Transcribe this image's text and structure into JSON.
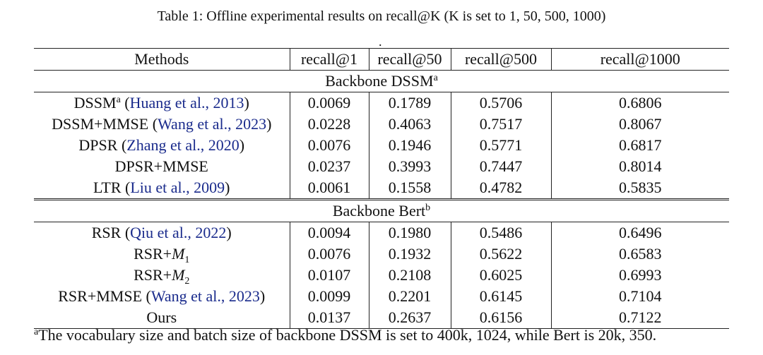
{
  "caption": "Table 1: Offline experimental results on recall@K (K is set to 1, 50, 500, 1000)",
  "caption_dot": ".",
  "headers": [
    "Methods",
    "recall@1",
    "recall@50",
    "recall@500",
    "recall@1000"
  ],
  "sections": [
    {
      "title": "Backbone DSSM",
      "title_sup": "a",
      "rows": [
        {
          "name": "DSSM",
          "name_sup": "a",
          "ref_pre": " (",
          "ref": "Huang et al., 2013",
          "ref_post": ")",
          "values": [
            "0.0069",
            "0.1789",
            "0.5706",
            "0.6806"
          ]
        },
        {
          "name": "DSSM+MMSE",
          "ref_pre": " (",
          "ref": "Wang et al., 2023",
          "ref_post": ")",
          "values": [
            "0.0228",
            "0.4063",
            "0.7517",
            "0.8067"
          ]
        },
        {
          "name": "DPSR",
          "ref_pre": " (",
          "ref": "Zhang et al., 2020",
          "ref_post": ")",
          "values": [
            "0.0076",
            "0.1946",
            "0.5771",
            "0.6817"
          ]
        },
        {
          "name": "DPSR+MMSE",
          "values": [
            "0.0237",
            "0.3993",
            "0.7447",
            "0.8014"
          ]
        },
        {
          "name": "LTR",
          "ref_pre": " (",
          "ref": "Liu et al., 2009",
          "ref_post": ")",
          "values": [
            "0.0061",
            "0.1558",
            "0.4782",
            "0.5835"
          ]
        }
      ]
    },
    {
      "title": "Backbone Bert",
      "title_sup": "b",
      "rows": [
        {
          "name": "RSR",
          "ref_pre": " (",
          "ref": "Qiu et al., 2022",
          "ref_post": ")",
          "values": [
            "0.0094",
            "0.1980",
            "0.5486",
            "0.6496"
          ]
        },
        {
          "name": "RSR+",
          "math": "M",
          "math_sub": "1",
          "values": [
            "0.0076",
            "0.1932",
            "0.5622",
            "0.6583"
          ]
        },
        {
          "name": "RSR+",
          "math": "M",
          "math_sub": "2",
          "values": [
            "0.0107",
            "0.2108",
            "0.6025",
            "0.6993"
          ]
        },
        {
          "name": "RSR+MMSE",
          "ref_pre": " (",
          "ref": "Wang et al., 2023",
          "ref_post": ")",
          "values": [
            "0.0099",
            "0.2201",
            "0.6145",
            "0.7104"
          ]
        },
        {
          "name": "Ours",
          "bold": true,
          "values": [
            "0.0137",
            "0.2637",
            "0.6156",
            "0.7122"
          ]
        }
      ]
    }
  ],
  "footnote_sup": "a",
  "footnote": "The vocabulary size and batch size of backbone DSSM is set to 400k, 1024, while Bert is 20k, 350."
}
